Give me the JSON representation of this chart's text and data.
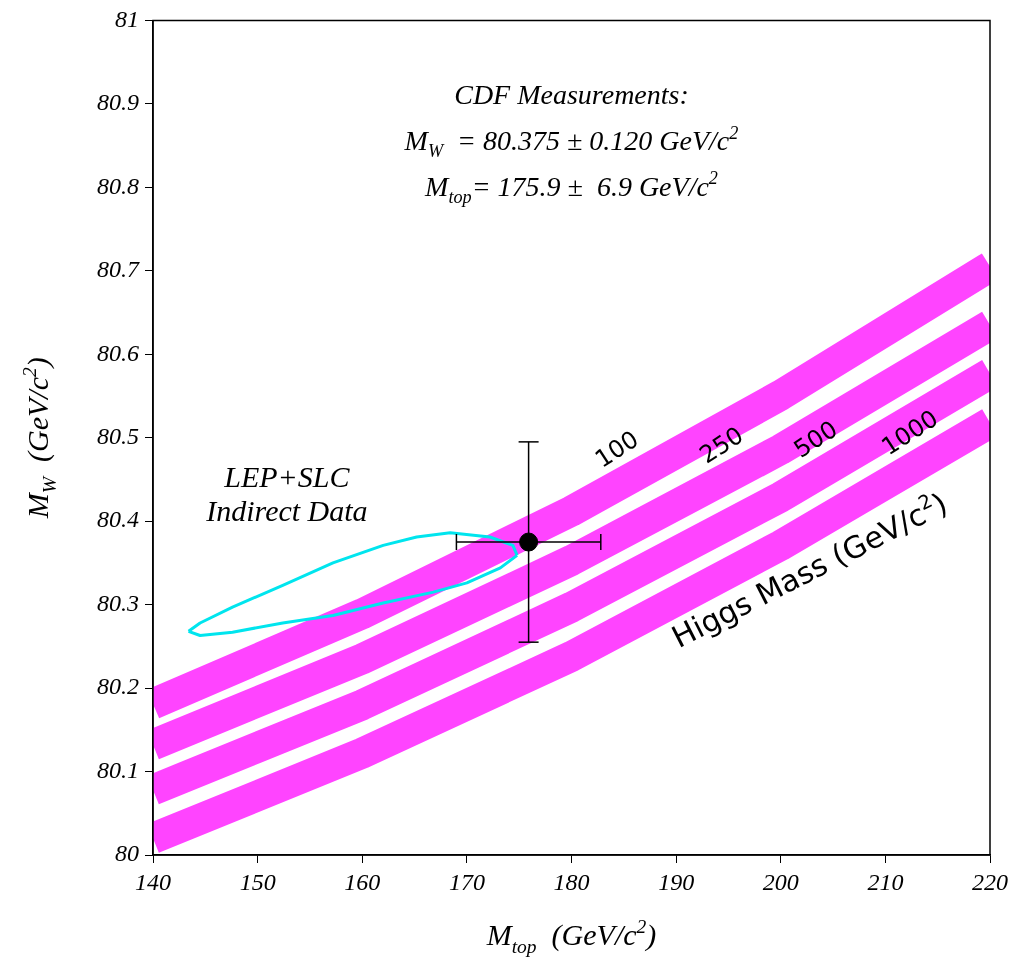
{
  "chart_data": {
    "type": "line",
    "xlabel": "M$_{top}$  (GeV/c$^{2}$)",
    "ylabel": "M$_{W}$  (GeV/c$^{2}$)",
    "xlim": [
      140,
      220
    ],
    "xticks": [
      140,
      150,
      160,
      170,
      180,
      190,
      200,
      210,
      220
    ],
    "ylim": [
      80,
      81
    ],
    "yticks": [
      80,
      80.1,
      80.2,
      80.3,
      80.4,
      80.5,
      80.6,
      80.7,
      80.8,
      80.9,
      81
    ],
    "grid": false,
    "legend": false,
    "annotations": [
      "CDF Measurements:",
      "M$_{W}$  = 80.375 ± 0.120 GeV/c$^{2}$",
      "M$_{top}$= 175.9 ±  6.9 GeV/c$^{2}$",
      "LEP+SLC Indirect Data",
      "Higgs Mass (GeV/c$^{2}$)",
      {
        "text": "100",
        "x": 186,
        "y": 80.454
      },
      {
        "text": "250",
        "x": 196,
        "y": 80.459
      },
      {
        "text": "500",
        "x": 205,
        "y": 80.466
      },
      {
        "text": "1000",
        "x": 214,
        "y": 80.474
      }
    ],
    "series": [
      {
        "color": "#ff44ff",
        "x": [
          140,
          160,
          180,
          200,
          220
        ],
        "values": [
          80.181,
          80.289,
          80.412,
          80.551,
          80.705
        ]
      },
      {
        "color": "#ff44ff",
        "x": [
          140,
          160,
          180,
          200,
          220
        ],
        "values": [
          80.132,
          80.235,
          80.353,
          80.486,
          80.635
        ]
      },
      {
        "color": "#ff44ff",
        "x": [
          140,
          160,
          180,
          200,
          220
        ],
        "values": [
          80.078,
          80.18,
          80.297,
          80.429,
          80.577
        ]
      },
      {
        "color": "#ff44ff",
        "x": [
          140,
          160,
          180,
          200,
          220
        ],
        "values": [
          80.02,
          80.122,
          80.238,
          80.371,
          80.518
        ]
      },
      {
        "color": "#00e5ee",
        "x": [
          143.4,
          144.5,
          147.6,
          152.4,
          157.2,
          162,
          165.2,
          168.4,
          172.2,
          174.4,
          174.8
        ],
        "values": [
          80.268,
          80.278,
          80.297,
          80.323,
          80.35,
          80.371,
          80.381,
          80.386,
          80.381,
          80.371,
          80.359
        ]
      },
      {
        "color": "#00e5ee",
        "x": [
          143.4,
          144.5,
          147.6,
          152.4,
          157.2,
          162,
          166.8,
          170,
          173.2,
          174.8
        ],
        "values": [
          80.268,
          80.263,
          80.267,
          80.278,
          80.287,
          80.302,
          80.315,
          80.326,
          80.344,
          80.359
        ]
      },
      {
        "type": "scatter",
        "color": "#000000",
        "marker": "circle",
        "x": [
          175.9
        ],
        "values": [
          80.375
        ],
        "errors": [
          0.12
        ],
        "xerrors": [
          6.9
        ]
      }
    ]
  }
}
